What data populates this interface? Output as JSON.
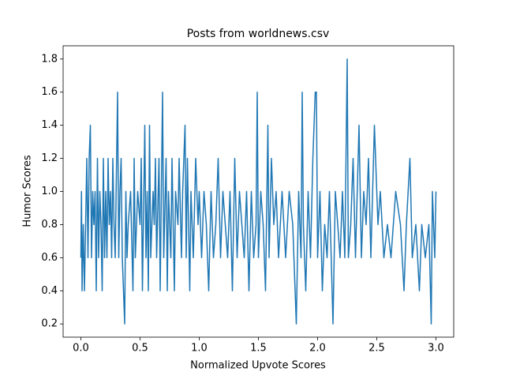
{
  "chart_data": {
    "type": "line",
    "title": "Posts from worldnews.csv",
    "x_label": "Normalized Upvote Scores",
    "y_label": "Humor Scores",
    "color": "#1f77b4",
    "xlim": [
      -0.15,
      3.15
    ],
    "ylim": [
      0.12,
      1.88
    ],
    "xticks": [
      {
        "value": 0,
        "label": "0.0"
      },
      0.5,
      {
        "value": 1,
        "label": "1.0"
      },
      1.5,
      {
        "value": 2,
        "label": "2.0"
      },
      2.5,
      {
        "value": 3,
        "label": "3.0"
      }
    ],
    "yticks": [
      0.2,
      0.4,
      0.6,
      0.8,
      {
        "value": 1,
        "label": "1.0"
      },
      1.2,
      1.4,
      1.6,
      1.8
    ],
    "x": [
      0,
      0.005,
      0.01,
      0.02,
      0.03,
      0.04,
      0.05,
      0.06,
      0.07,
      0.08,
      0.09,
      0.1,
      0.11,
      0.12,
      0.13,
      0.14,
      0.15,
      0.16,
      0.17,
      0.18,
      0.19,
      0.2,
      0.21,
      0.22,
      0.23,
      0.24,
      0.25,
      0.26,
      0.27,
      0.28,
      0.29,
      0.31,
      0.32,
      0.33,
      0.34,
      0.35,
      0.36,
      0.37,
      0.38,
      0.39,
      0.4,
      0.42,
      0.44,
      0.45,
      0.46,
      0.48,
      0.5,
      0.51,
      0.52,
      0.54,
      0.55,
      0.56,
      0.57,
      0.58,
      0.59,
      0.61,
      0.62,
      0.63,
      0.64,
      0.66,
      0.67,
      0.68,
      0.69,
      0.7,
      0.72,
      0.73,
      0.74,
      0.76,
      0.77,
      0.79,
      0.8,
      0.82,
      0.83,
      0.85,
      0.86,
      0.88,
      0.89,
      0.9,
      0.92,
      0.93,
      0.95,
      0.97,
      0.99,
      1,
      1.02,
      1.04,
      1.06,
      1.08,
      1.1,
      1.12,
      1.14,
      1.16,
      1.18,
      1.2,
      1.22,
      1.24,
      1.26,
      1.28,
      1.3,
      1.32,
      1.34,
      1.36,
      1.38,
      1.4,
      1.42,
      1.44,
      1.46,
      1.48,
      1.49,
      1.5,
      1.52,
      1.54,
      1.56,
      1.58,
      1.59,
      1.61,
      1.63,
      1.65,
      1.67,
      1.7,
      1.73,
      1.76,
      1.79,
      1.82,
      1.84,
      1.86,
      1.87,
      1.88,
      1.9,
      1.92,
      1.94,
      1.96,
      1.98,
      1.99,
      2,
      2.02,
      2.04,
      2.06,
      2.08,
      2.1,
      2.13,
      2.15,
      2.17,
      2.19,
      2.21,
      2.23,
      2.25,
      2.26,
      2.28,
      2.3,
      2.32,
      2.35,
      2.37,
      2.39,
      2.41,
      2.43,
      2.45,
      2.48,
      2.49,
      2.51,
      2.53,
      2.56,
      2.59,
      2.62,
      2.66,
      2.7,
      2.73,
      2.75,
      2.78,
      2.8,
      2.83,
      2.86,
      2.88,
      2.91,
      2.94,
      2.96,
      2.97,
      2.99,
      3
    ],
    "values": [
      0.6,
      1,
      0.4,
      0.8,
      0.4,
      0.8,
      1.2,
      0.6,
      1.2,
      1.4,
      0.6,
      1,
      0.8,
      1,
      0.4,
      1.2,
      0.6,
      1,
      0.8,
      0.4,
      1.2,
      0.6,
      1,
      0.6,
      1.2,
      0.8,
      1,
      0.6,
      1.2,
      0.8,
      0.6,
      1.6,
      0.6,
      1,
      1.2,
      0.6,
      0.4,
      0.2,
      1,
      0.6,
      0.8,
      1,
      0.4,
      1.2,
      0.6,
      1,
      0.8,
      1.2,
      0.4,
      1.4,
      0.6,
      1,
      0.4,
      1.4,
      0.6,
      1,
      0.8,
      1.2,
      0.6,
      1.2,
      0.4,
      1,
      1.6,
      0.6,
      1.2,
      0.4,
      1,
      0.6,
      1.2,
      0.4,
      1,
      0.8,
      1.2,
      0.6,
      1,
      1.4,
      0.6,
      1.2,
      0.4,
      1,
      0.6,
      1.2,
      0.8,
      1,
      0.6,
      1,
      0.8,
      0.4,
      1,
      0.6,
      0.8,
      1.2,
      0.6,
      1,
      0.8,
      0.6,
      1,
      0.4,
      1.2,
      0.6,
      1,
      0.8,
      0.6,
      1,
      0.4,
      1,
      0.6,
      0.8,
      1.6,
      0.6,
      1,
      0.8,
      0.4,
      1.4,
      0.6,
      1.2,
      0.8,
      1,
      0.6,
      1,
      0.6,
      1,
      0.8,
      0.2,
      1,
      0.6,
      1.6,
      0.8,
      0.4,
      1,
      0.6,
      1.2,
      1.6,
      1.6,
      0.6,
      1,
      0.4,
      0.8,
      0.6,
      1,
      0.2,
      1,
      0.8,
      0.6,
      1,
      0.6,
      1.8,
      0.6,
      0.8,
      1.2,
      0.6,
      1.4,
      0.6,
      1,
      0.8,
      1.2,
      0.6,
      1.4,
      1.2,
      0.8,
      1,
      0.6,
      0.8,
      0.6,
      1,
      0.8,
      0.4,
      0.8,
      1.2,
      0.6,
      0.8,
      0.4,
      0.8,
      0.6,
      0.8,
      0.2,
      1,
      0.6,
      1
    ]
  }
}
